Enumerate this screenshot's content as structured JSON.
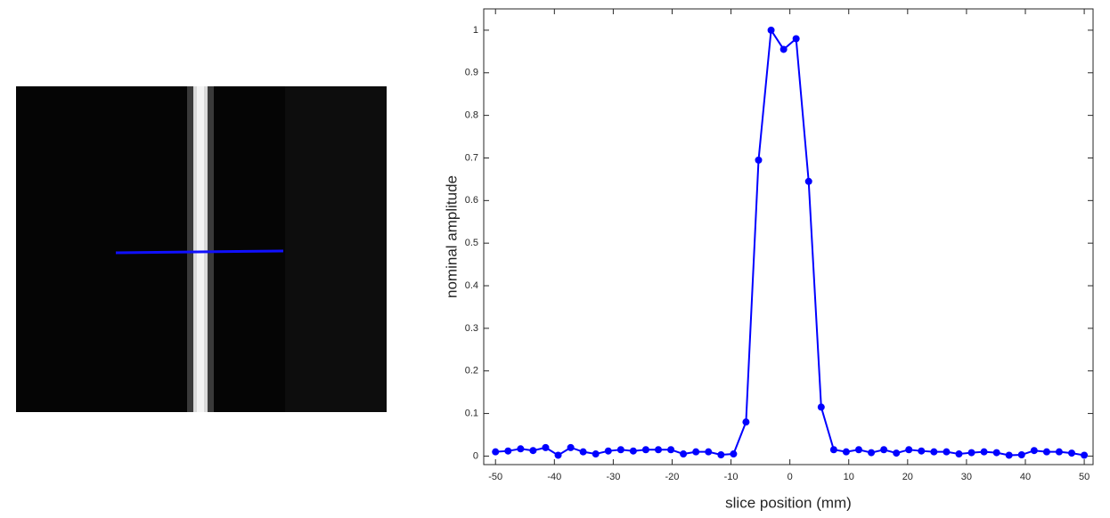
{
  "chart_data": {
    "type": "line",
    "x_label": "slice position (mm)",
    "y_label": "nominal amplitude",
    "x": [
      -50,
      -47.87,
      -45.74,
      -43.62,
      -41.49,
      -39.36,
      -37.23,
      -35.11,
      -32.98,
      -30.85,
      -28.72,
      -26.6,
      -24.47,
      -22.34,
      -20.21,
      -18.09,
      -15.96,
      -13.83,
      -11.7,
      -9.57,
      -7.45,
      -5.32,
      -3.19,
      -1.06,
      1.06,
      3.19,
      5.32,
      7.45,
      9.57,
      11.7,
      13.83,
      15.96,
      18.09,
      20.21,
      22.34,
      24.47,
      26.6,
      28.72,
      30.85,
      32.98,
      35.11,
      37.23,
      39.36,
      41.49,
      43.62,
      45.74,
      47.87,
      50
    ],
    "series": [
      {
        "color": "#0000ff",
        "values": [
          0.01,
          0.012,
          0.017,
          0.013,
          0.02,
          0.002,
          0.02,
          0.01,
          0.005,
          0.012,
          0.015,
          0.012,
          0.015,
          0.015,
          0.015,
          0.005,
          0.01,
          0.01,
          0.003,
          0.005,
          0.08,
          0.695,
          1.0,
          0.955,
          0.98,
          0.645,
          0.115,
          0.015,
          0.01,
          0.015,
          0.008,
          0.015,
          0.007,
          0.015,
          0.012,
          0.01,
          0.01,
          0.005,
          0.008,
          0.01,
          0.008,
          0.002,
          0.003,
          0.013,
          0.01,
          0.01,
          0.007,
          0.002
        ]
      }
    ],
    "xlim": [
      -52,
      51.5
    ],
    "ylim": [
      -0.02,
      1.05
    ],
    "xticks": [
      -50,
      -40,
      -30,
      -20,
      -10,
      0,
      10,
      20,
      30,
      40,
      50
    ],
    "yticks": [
      0,
      0.1,
      0.2,
      0.3,
      0.4,
      0.5,
      0.6,
      0.7,
      0.8,
      0.9,
      1
    ]
  }
}
